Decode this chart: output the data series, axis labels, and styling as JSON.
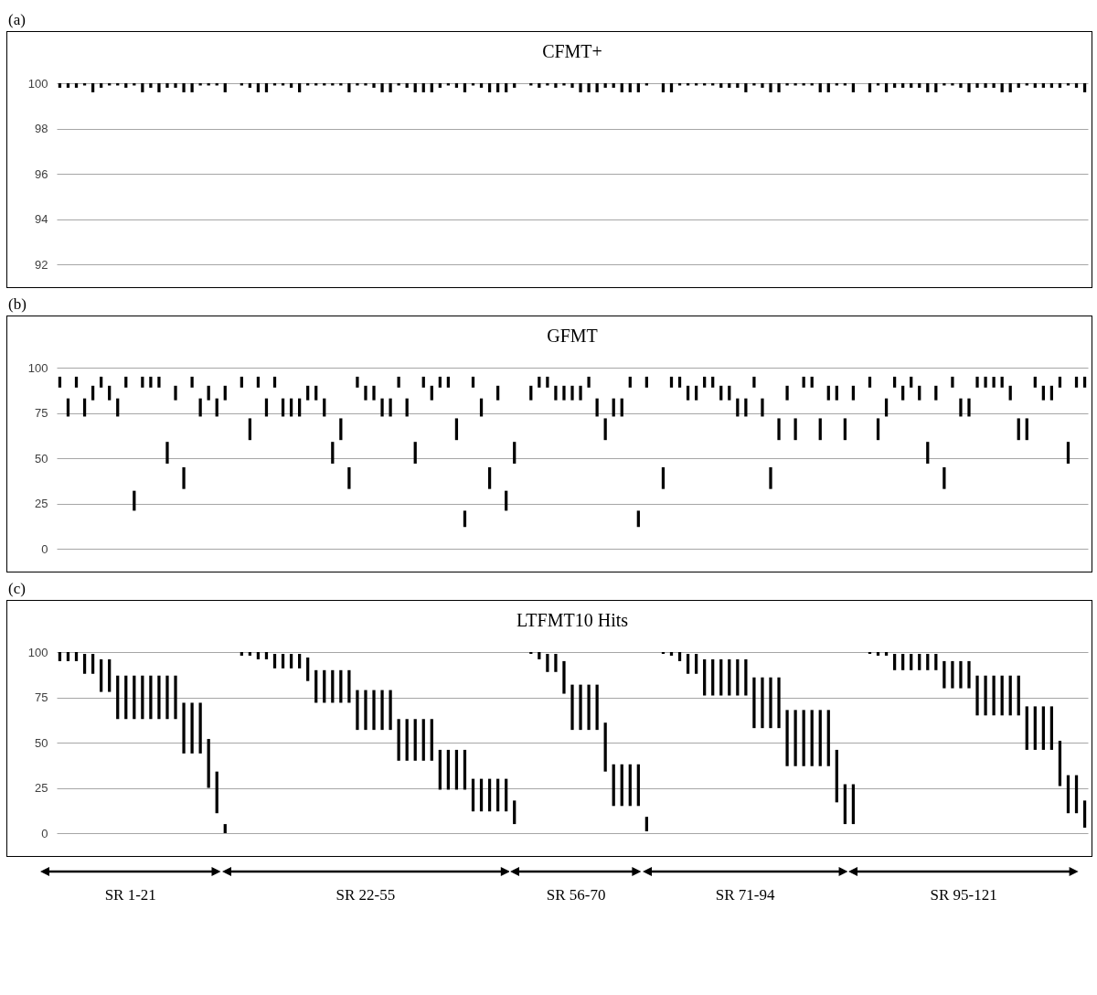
{
  "chart_data": [
    {
      "type": "bar",
      "title": "CFMT+",
      "annotations": [
        "(a)"
      ],
      "color": "#000000",
      "ylim": [
        92,
        100
      ],
      "yticks": [
        92,
        94,
        96,
        98,
        100
      ],
      "grid": "y",
      "tick_labels": "y",
      "categories": [
        null,
        null,
        null,
        null,
        null,
        null,
        null,
        null,
        null,
        null,
        null,
        null,
        null,
        null,
        null,
        null,
        null,
        null,
        null,
        null,
        null,
        null,
        null,
        null,
        null,
        null,
        null,
        null,
        null,
        null,
        null,
        null,
        null,
        null,
        null,
        null,
        null,
        null,
        null,
        null,
        null,
        null,
        null,
        null,
        null,
        null,
        null,
        null,
        null,
        null,
        null,
        null,
        null,
        null,
        null,
        null,
        null,
        null,
        null,
        null,
        null,
        null,
        null,
        null,
        null,
        null,
        null,
        null,
        null,
        null,
        null,
        null,
        null,
        null,
        null,
        null,
        null,
        null,
        null,
        null,
        null,
        null,
        null,
        null,
        null,
        null,
        null,
        null,
        null,
        null,
        null,
        null,
        null,
        null,
        null,
        null,
        null,
        null,
        null,
        null,
        null,
        null,
        null,
        null,
        null,
        null,
        null,
        null,
        null,
        null,
        null,
        null,
        null,
        null,
        null,
        null,
        null,
        null,
        null,
        null,
        null,
        null,
        null,
        null,
        null
      ],
      "base": [
        99.8,
        99.8,
        99.8,
        99.9,
        99.6,
        99.8,
        99.9,
        99.9,
        99.8,
        99.9,
        99.6,
        99.8,
        99.6,
        99.8,
        99.8,
        99.6,
        99.6,
        99.9,
        99.9,
        99.9,
        99.6,
        null,
        99.9,
        99.8,
        99.6,
        99.6,
        99.9,
        99.9,
        99.8,
        99.6,
        99.9,
        99.9,
        99.9,
        99.9,
        99.9,
        99.6,
        99.9,
        99.9,
        99.8,
        99.6,
        99.6,
        99.9,
        99.8,
        99.6,
        99.6,
        99.6,
        99.8,
        99.9,
        99.8,
        99.6,
        99.9,
        99.8,
        99.6,
        99.6,
        99.6,
        99.8,
        null,
        99.9,
        99.8,
        99.9,
        99.8,
        99.9,
        99.8,
        99.6,
        99.6,
        99.6,
        99.8,
        99.8,
        99.6,
        99.6,
        99.6,
        99.9,
        null,
        99.6,
        99.6,
        99.9,
        99.9,
        99.9,
        99.9,
        99.9,
        99.8,
        99.8,
        99.8,
        99.6,
        99.9,
        99.8,
        99.6,
        99.6,
        99.9,
        99.9,
        99.9,
        99.9,
        99.6,
        99.6,
        99.9,
        99.9,
        99.6,
        null,
        99.6,
        99.9,
        99.6,
        99.8,
        99.8,
        99.8,
        99.8,
        99.6,
        99.6,
        99.9,
        99.9,
        99.8,
        99.6,
        99.8,
        99.8,
        99.8,
        99.6,
        99.6,
        99.8,
        99.9,
        99.8,
        99.8,
        99.8,
        99.8,
        99.9,
        99.8,
        99.6
      ],
      "values": [
        0.2,
        0.2,
        0.2,
        0.1,
        0.4,
        0.2,
        0.1,
        0.1,
        0.2,
        0.1,
        0.4,
        0.2,
        0.4,
        0.2,
        0.2,
        0.4,
        0.4,
        0.1,
        0.1,
        0.1,
        0.4,
        null,
        0.1,
        0.2,
        0.4,
        0.4,
        0.1,
        0.1,
        0.2,
        0.4,
        0.1,
        0.1,
        0.1,
        0.1,
        0.1,
        0.4,
        0.1,
        0.1,
        0.2,
        0.4,
        0.4,
        0.1,
        0.2,
        0.4,
        0.4,
        0.4,
        0.2,
        0.1,
        0.2,
        0.4,
        0.1,
        0.2,
        0.4,
        0.4,
        0.4,
        0.2,
        null,
        0.1,
        0.2,
        0.1,
        0.2,
        0.1,
        0.2,
        0.4,
        0.4,
        0.4,
        0.2,
        0.2,
        0.4,
        0.4,
        0.4,
        0.1,
        null,
        0.4,
        0.4,
        0.1,
        0.1,
        0.1,
        0.1,
        0.1,
        0.2,
        0.2,
        0.2,
        0.4,
        0.1,
        0.2,
        0.4,
        0.4,
        0.1,
        0.1,
        0.1,
        0.1,
        0.4,
        0.4,
        0.1,
        0.1,
        0.4,
        null,
        0.4,
        0.1,
        0.4,
        0.2,
        0.2,
        0.2,
        0.2,
        0.4,
        0.4,
        0.1,
        0.1,
        0.2,
        0.4,
        0.2,
        0.2,
        0.2,
        0.4,
        0.4,
        0.2,
        0.1,
        0.2,
        0.2,
        0.2,
        0.2,
        0.1,
        0.2,
        0.4
      ]
    },
    {
      "type": "bar",
      "title": "GFMT",
      "annotations": [
        "(b)"
      ],
      "color": "#000000",
      "ylim": [
        0,
        100
      ],
      "yticks": [
        0,
        25,
        50,
        75,
        100
      ],
      "grid": "y",
      "tick_labels": "y",
      "categories": [
        null,
        null,
        null,
        null,
        null,
        null,
        null,
        null,
        null,
        null,
        null,
        null,
        null,
        null,
        null,
        null,
        null,
        null,
        null,
        null,
        null,
        null,
        null,
        null,
        null,
        null,
        null,
        null,
        null,
        null,
        null,
        null,
        null,
        null,
        null,
        null,
        null,
        null,
        null,
        null,
        null,
        null,
        null,
        null,
        null,
        null,
        null,
        null,
        null,
        null,
        null,
        null,
        null,
        null,
        null,
        null,
        null,
        null,
        null,
        null,
        null,
        null,
        null,
        null,
        null,
        null,
        null,
        null,
        null,
        null,
        null,
        null,
        null,
        null,
        null,
        null,
        null,
        null,
        null,
        null,
        null,
        null,
        null,
        null,
        null,
        null,
        null,
        null,
        null,
        null,
        null,
        null,
        null,
        null,
        null,
        null,
        null,
        null,
        null,
        null,
        null,
        null,
        null,
        null,
        null,
        null,
        null,
        null,
        null,
        null,
        null,
        null,
        null,
        null,
        null,
        null,
        null,
        null,
        null,
        null,
        null,
        null,
        null,
        null,
        null
      ],
      "base": [
        89,
        73,
        89,
        73,
        82,
        89,
        82,
        73,
        89,
        21,
        89,
        89,
        89,
        47,
        82,
        33,
        89,
        73,
        82,
        73,
        82,
        null,
        89,
        60,
        89,
        73,
        89,
        73,
        73,
        73,
        82,
        82,
        73,
        47,
        60,
        33,
        89,
        82,
        82,
        73,
        73,
        89,
        73,
        47,
        89,
        82,
        89,
        89,
        60,
        12,
        89,
        73,
        33,
        82,
        21,
        47,
        null,
        82,
        89,
        89,
        82,
        82,
        82,
        82,
        89,
        73,
        60,
        73,
        73,
        89,
        12,
        89,
        null,
        33,
        89,
        89,
        82,
        82,
        89,
        89,
        82,
        82,
        73,
        73,
        89,
        73,
        33,
        60,
        82,
        60,
        89,
        89,
        60,
        82,
        82,
        60,
        82,
        null,
        89,
        60,
        73,
        89,
        82,
        89,
        82,
        47,
        82,
        33,
        89,
        73,
        73,
        89,
        89,
        89,
        89,
        82,
        60,
        60,
        89,
        82,
        82,
        89,
        47,
        89,
        89
      ],
      "values": [
        6,
        10,
        6,
        10,
        8,
        6,
        8,
        10,
        6,
        11,
        6,
        6,
        6,
        12,
        8,
        12,
        6,
        10,
        8,
        10,
        8,
        null,
        6,
        12,
        6,
        10,
        6,
        10,
        10,
        10,
        8,
        8,
        10,
        12,
        12,
        12,
        6,
        8,
        8,
        10,
        10,
        6,
        10,
        12,
        6,
        8,
        6,
        6,
        12,
        9,
        6,
        10,
        12,
        8,
        11,
        12,
        null,
        8,
        6,
        6,
        8,
        8,
        8,
        8,
        6,
        10,
        12,
        10,
        10,
        6,
        9,
        6,
        null,
        12,
        6,
        6,
        8,
        8,
        6,
        6,
        8,
        8,
        10,
        10,
        6,
        10,
        12,
        12,
        8,
        12,
        6,
        6,
        12,
        8,
        8,
        12,
        8,
        null,
        6,
        12,
        10,
        6,
        8,
        6,
        8,
        12,
        8,
        12,
        6,
        10,
        10,
        6,
        6,
        6,
        6,
        8,
        12,
        12,
        6,
        8,
        8,
        6,
        12,
        6,
        6
      ]
    },
    {
      "type": "bar",
      "title": "LTFMT10 Hits",
      "annotations": [
        "(c)",
        "SR 1-21",
        "SR 22-55",
        "SR 56-70",
        "SR 71-94",
        "SR 95-121"
      ],
      "color": "#000000",
      "ylim": [
        0,
        100
      ],
      "yticks": [
        0,
        25,
        50,
        75,
        100
      ],
      "grid": "y",
      "tick_labels": "y",
      "categories": [
        null,
        null,
        null,
        null,
        null,
        null,
        null,
        null,
        null,
        null,
        null,
        null,
        null,
        null,
        null,
        null,
        null,
        null,
        null,
        null,
        null,
        null,
        null,
        null,
        null,
        null,
        null,
        null,
        null,
        null,
        null,
        null,
        null,
        null,
        null,
        null,
        null,
        null,
        null,
        null,
        null,
        null,
        null,
        null,
        null,
        null,
        null,
        null,
        null,
        null,
        null,
        null,
        null,
        null,
        null,
        null,
        null,
        null,
        null,
        null,
        null,
        null,
        null,
        null,
        null,
        null,
        null,
        null,
        null,
        null,
        null,
        null,
        null,
        null,
        null,
        null,
        null,
        null,
        null,
        null,
        null,
        null,
        null,
        null,
        null,
        null,
        null,
        null,
        null,
        null,
        null,
        null,
        null,
        null,
        null,
        null,
        null,
        null,
        null,
        null,
        null,
        null,
        null,
        null,
        null,
        null,
        null,
        null,
        null,
        null,
        null,
        null,
        null,
        null,
        null,
        null,
        null,
        null,
        null,
        null,
        null,
        null,
        null,
        null,
        null
      ],
      "base": [
        95,
        95,
        95,
        88,
        88,
        78,
        78,
        63,
        63,
        63,
        63,
        63,
        63,
        63,
        63,
        44,
        44,
        44,
        25,
        11,
        0,
        null,
        98,
        98,
        96,
        96,
        91,
        91,
        91,
        91,
        84,
        72,
        72,
        72,
        72,
        72,
        57,
        57,
        57,
        57,
        57,
        40,
        40,
        40,
        40,
        40,
        24,
        24,
        24,
        24,
        12,
        12,
        12,
        12,
        12,
        5,
        null,
        99,
        96,
        89,
        89,
        77,
        57,
        57,
        57,
        57,
        34,
        15,
        15,
        15,
        15,
        1,
        null,
        99,
        98,
        95,
        88,
        88,
        76,
        76,
        76,
        76,
        76,
        76,
        58,
        58,
        58,
        58,
        37,
        37,
        37,
        37,
        37,
        37,
        17,
        5,
        5,
        null,
        99,
        98,
        98,
        90,
        90,
        90,
        90,
        90,
        90,
        80,
        80,
        80,
        80,
        65,
        65,
        65,
        65,
        65,
        65,
        46,
        46,
        46,
        46,
        26,
        11,
        11,
        3
      ],
      "values": [
        5,
        5,
        5,
        11,
        11,
        18,
        18,
        24,
        24,
        24,
        24,
        24,
        24,
        24,
        24,
        28,
        28,
        28,
        27,
        23,
        5,
        null,
        2,
        2,
        4,
        4,
        8,
        8,
        8,
        8,
        13,
        18,
        18,
        18,
        18,
        18,
        22,
        22,
        22,
        22,
        22,
        23,
        23,
        23,
        23,
        23,
        22,
        22,
        22,
        22,
        18,
        18,
        18,
        18,
        18,
        13,
        null,
        1,
        4,
        10,
        10,
        18,
        25,
        25,
        25,
        25,
        27,
        23,
        23,
        23,
        23,
        8,
        null,
        1,
        2,
        5,
        11,
        11,
        20,
        20,
        20,
        20,
        20,
        20,
        28,
        28,
        28,
        28,
        31,
        31,
        31,
        31,
        31,
        31,
        29,
        22,
        22,
        null,
        1,
        2,
        2,
        9,
        9,
        9,
        9,
        9,
        9,
        15,
        15,
        15,
        15,
        22,
        22,
        22,
        22,
        22,
        22,
        24,
        24,
        24,
        24,
        25,
        21,
        21,
        15
      ]
    }
  ]
}
